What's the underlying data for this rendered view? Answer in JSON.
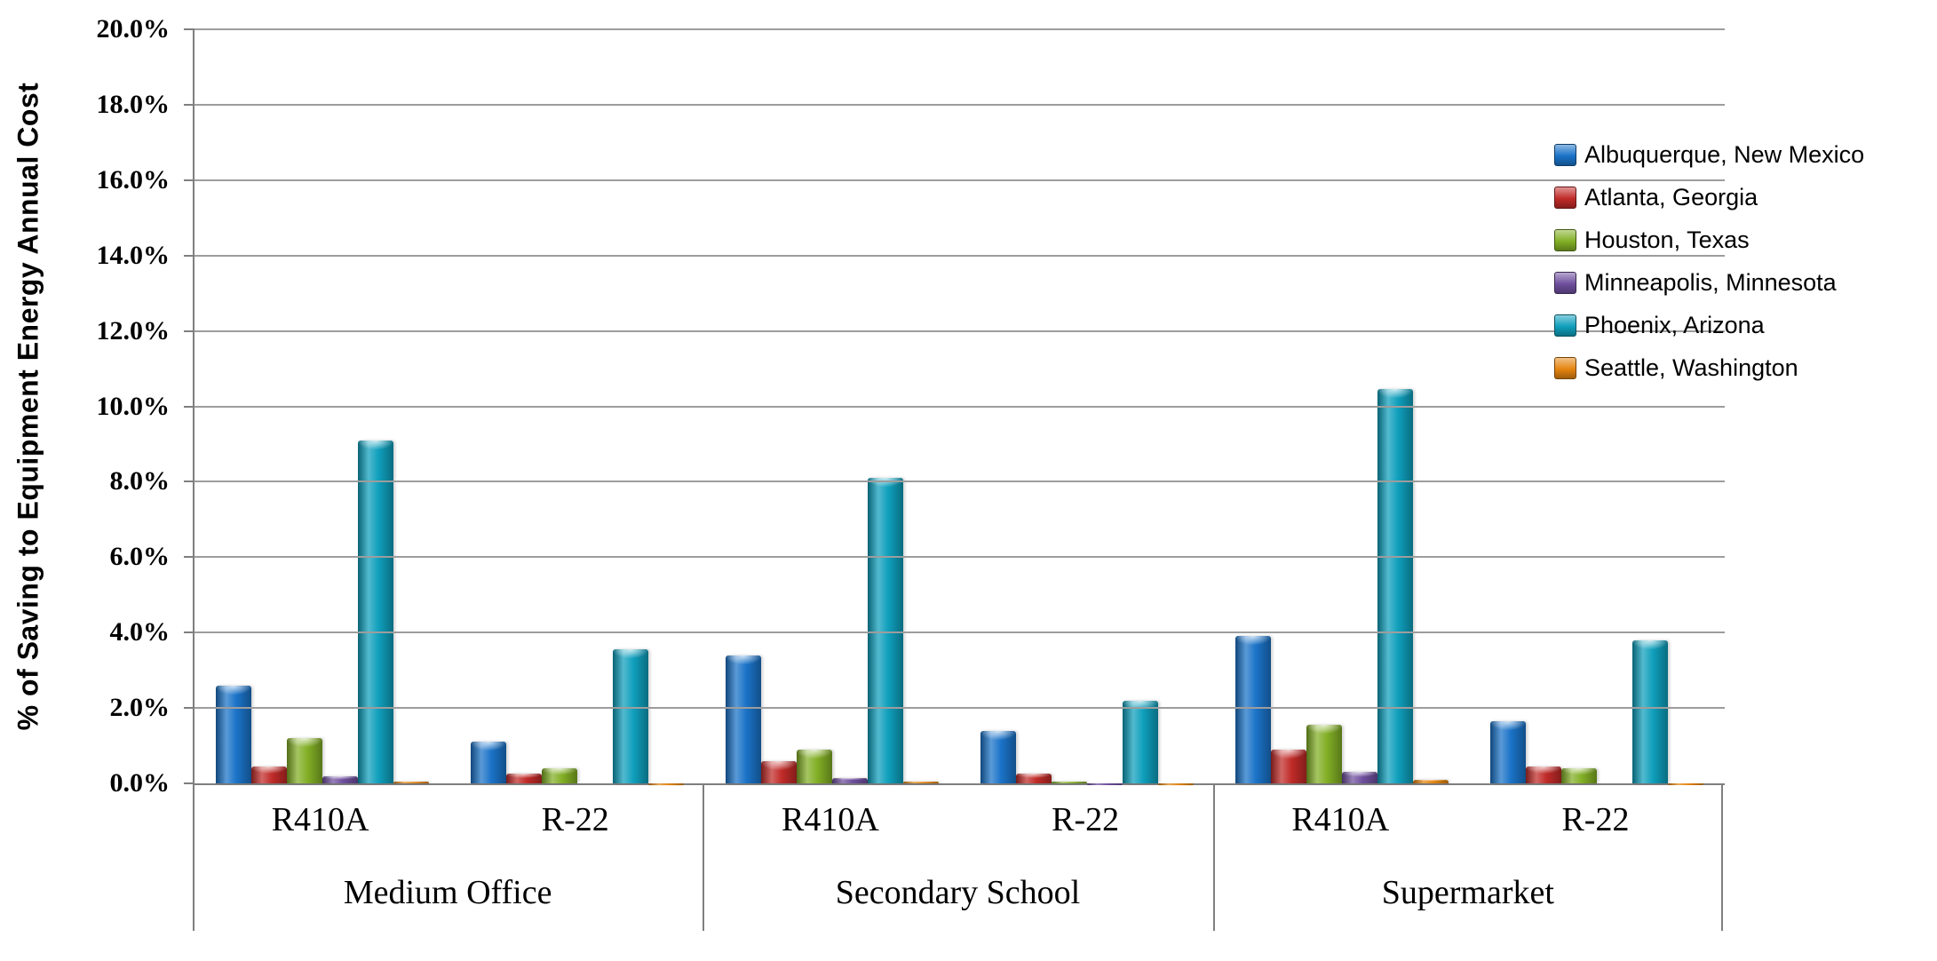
{
  "chart_data": {
    "type": "bar",
    "title": "",
    "xlabel": "",
    "ylabel": "% of Saving to Equipment Energy Annual Cost",
    "ylim": [
      0,
      20
    ],
    "ytick_step_pct": 2,
    "ytick_labels": [
      "20.0%",
      "18.0%",
      "16.0%",
      "14.0%",
      "12.0%",
      "10.0%",
      "8.0%",
      "6.0%",
      "4.0%",
      "2.0%",
      "0.0%"
    ],
    "grid": true,
    "legend_position": "right",
    "series": [
      {
        "name": "Albuquerque, New Mexico",
        "color": "#1A73C8"
      },
      {
        "name": "Atlanta, Georgia",
        "color": "#C02B28"
      },
      {
        "name": "Houston, Texas",
        "color": "#82AF25"
      },
      {
        "name": "Minneapolis, Minnesota",
        "color": "#6F4F9E"
      },
      {
        "name": "Phoenix, Arizona",
        "color": "#0F9FBC"
      },
      {
        "name": "Seattle, Washington",
        "color": "#E5850F"
      }
    ],
    "groups": [
      {
        "label": "Medium Office",
        "subgroups": [
          {
            "label": "R410A",
            "values": [
              2.6,
              0.45,
              1.2,
              0.2,
              9.1,
              0.05
            ]
          },
          {
            "label": "R-22",
            "values": [
              1.1,
              0.25,
              0.4,
              0.0,
              3.55,
              -0.05
            ]
          }
        ]
      },
      {
        "label": "Secondary School",
        "subgroups": [
          {
            "label": "R410A",
            "values": [
              3.4,
              0.6,
              0.9,
              0.15,
              8.1,
              0.05
            ]
          },
          {
            "label": "R-22",
            "values": [
              1.4,
              0.25,
              0.05,
              -0.03,
              2.2,
              -0.05
            ]
          }
        ]
      },
      {
        "label": "Supermarket",
        "subgroups": [
          {
            "label": "R410A",
            "values": [
              3.9,
              0.9,
              1.55,
              0.3,
              10.45,
              0.1
            ]
          },
          {
            "label": "R-22",
            "values": [
              1.65,
              0.45,
              0.4,
              0.0,
              3.8,
              -0.03
            ]
          }
        ]
      }
    ]
  }
}
